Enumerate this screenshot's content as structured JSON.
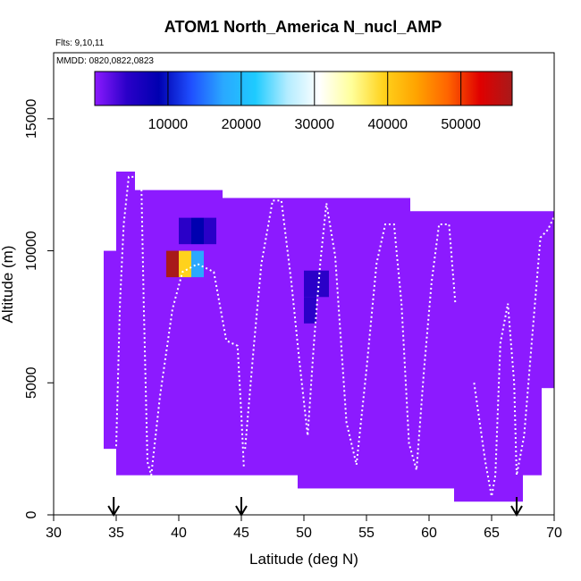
{
  "chart_data": {
    "type": "heatmap",
    "title": "ATOM1 North_America N_nucl_AMP",
    "subtitle_flights": "Flts: 9,10,11",
    "subtitle_dates": "MMDD: 0820,0822,0823",
    "xlabel": "Latitude (deg N)",
    "ylabel": "Altitude (m)",
    "xlim": [
      30,
      70
    ],
    "ylim": [
      0,
      17500
    ],
    "x_ticks": [
      30,
      35,
      40,
      45,
      50,
      55,
      60,
      65,
      70
    ],
    "y_ticks": [
      0,
      5000,
      10000,
      15000
    ],
    "grid": false,
    "colorbar": {
      "position": "top",
      "range": [
        0,
        57000
      ],
      "ticks": [
        10000,
        20000,
        30000,
        40000,
        50000
      ],
      "colors": [
        "#8c1aff",
        "#2a00c8",
        "#0000b0",
        "#1f4fff",
        "#2aa8ff",
        "#1ecbff",
        "#b3ecff",
        "#ffffff",
        "#ffff9a",
        "#ffd21c",
        "#ffa400",
        "#ff6400",
        "#e00000",
        "#a81a1a"
      ]
    },
    "background_value": 500,
    "ranges": [
      {
        "lat": [
          34.0,
          35.0
        ],
        "alt": [
          2500,
          10000
        ]
      },
      {
        "lat": [
          35.0,
          36.5
        ],
        "alt": [
          1500,
          13000
        ]
      },
      {
        "lat": [
          36.5,
          43.5
        ],
        "alt": [
          1500,
          12300
        ]
      },
      {
        "lat": [
          43.5,
          49.5
        ],
        "alt": [
          1500,
          12000
        ]
      },
      {
        "lat": [
          49.5,
          58.5
        ],
        "alt": [
          1000,
          12000
        ]
      },
      {
        "lat": [
          58.5,
          62.0
        ],
        "alt": [
          1000,
          11500
        ]
      },
      {
        "lat": [
          62.0,
          67.5
        ],
        "alt": [
          500,
          11500
        ]
      },
      {
        "lat": [
          67.5,
          69.0
        ],
        "alt": [
          1500,
          11500
        ]
      },
      {
        "lat": [
          69.0,
          70.0
        ],
        "alt": [
          4800,
          11500
        ]
      }
    ],
    "highlight_cells": [
      {
        "lat": 39.5,
        "alt": 9500,
        "value": 54000
      },
      {
        "lat": 40.5,
        "alt": 9500,
        "value": 38000
      },
      {
        "lat": 41.5,
        "alt": 9500,
        "value": 20000
      },
      {
        "lat": 40.5,
        "alt": 10750,
        "value": 7000
      },
      {
        "lat": 41.5,
        "alt": 10750,
        "value": 8500
      },
      {
        "lat": 42.5,
        "alt": 10750,
        "value": 6000
      },
      {
        "lat": 50.5,
        "alt": 8750,
        "value": 8000
      },
      {
        "lat": 51.5,
        "alt": 8750,
        "value": 5000
      },
      {
        "lat": 50.5,
        "alt": 7750,
        "value": 5000
      },
      {
        "lat": 51.5,
        "alt": 6750,
        "value": 4000
      }
    ],
    "flight_tracks": [
      [
        [
          35.0,
          2600
        ],
        [
          35.3,
          8000
        ],
        [
          35.6,
          11000
        ],
        [
          36.0,
          12800
        ],
        [
          37.0,
          12800
        ],
        [
          37.2,
          8000
        ],
        [
          37.5,
          2000
        ],
        [
          37.8,
          1500
        ],
        [
          38.5,
          4500
        ],
        [
          39.5,
          7800
        ],
        [
          40.3,
          9200
        ],
        [
          41.5,
          9500
        ],
        [
          42.8,
          9200
        ],
        [
          43.8,
          6600
        ],
        [
          44.7,
          6400
        ],
        [
          45.0,
          3800
        ],
        [
          45.2,
          1800
        ]
      ],
      [
        [
          45.3,
          2500
        ],
        [
          46.0,
          6400
        ],
        [
          46.6,
          9500
        ],
        [
          47.5,
          11900
        ],
        [
          48.2,
          11900
        ],
        [
          49.0,
          8800
        ],
        [
          49.6,
          6000
        ],
        [
          50.3,
          3000
        ],
        [
          50.8,
          6500
        ],
        [
          51.3,
          9500
        ],
        [
          51.8,
          11800
        ],
        [
          52.5,
          9800
        ],
        [
          53.4,
          3500
        ],
        [
          54.2,
          1900
        ],
        [
          55.0,
          5500
        ],
        [
          55.8,
          9500
        ],
        [
          56.5,
          11000
        ],
        [
          57.2,
          11000
        ],
        [
          57.8,
          8000
        ],
        [
          58.4,
          2700
        ],
        [
          59.0,
          1700
        ],
        [
          59.6,
          5500
        ],
        [
          60.2,
          8800
        ],
        [
          60.8,
          11000
        ],
        [
          61.6,
          11000
        ],
        [
          62.1,
          8000
        ]
      ],
      [
        [
          63.6,
          5000
        ],
        [
          64.5,
          2000
        ],
        [
          65.0,
          700
        ],
        [
          65.3,
          1500
        ],
        [
          65.7,
          6500
        ],
        [
          66.3,
          8000
        ],
        [
          66.8,
          5000
        ],
        [
          67.0,
          1500
        ],
        [
          67.6,
          3000
        ],
        [
          68.2,
          6500
        ],
        [
          68.9,
          10500
        ],
        [
          69.5,
          10800
        ],
        [
          70.0,
          11300
        ]
      ]
    ],
    "markers_lat": [
      34.8,
      45.0,
      67.0
    ]
  }
}
